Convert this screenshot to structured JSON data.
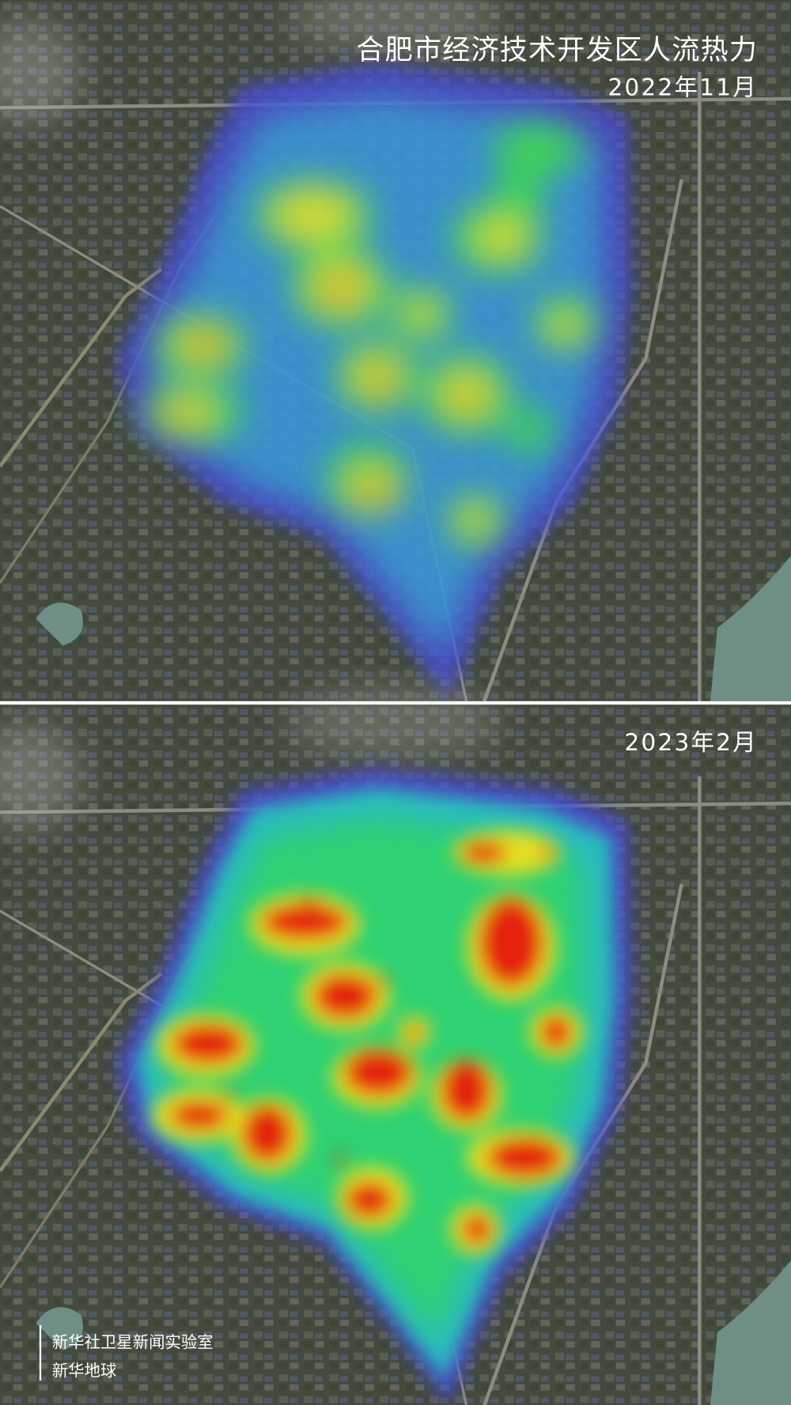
{
  "header": {
    "title": "合肥市经济技术开发区人流热力"
  },
  "panels": [
    {
      "label": "2022年11月"
    },
    {
      "label": "2023年2月"
    }
  ],
  "credits": [
    "新华社卫星新闻实验室",
    "新华地球"
  ]
}
